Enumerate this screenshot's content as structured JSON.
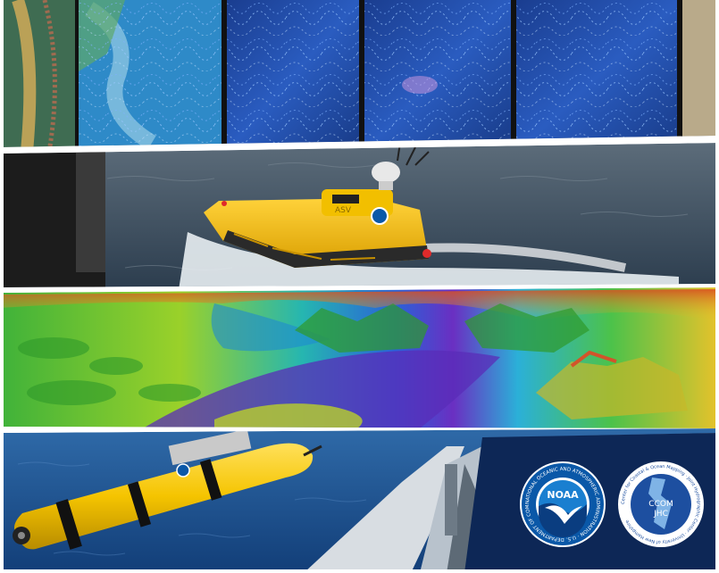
{
  "collage": {
    "panels": [
      {
        "id": "ocean-current-display-wall",
        "subject": "ocean current visualization screens"
      },
      {
        "id": "autonomous-survey-vessel",
        "subject": "yellow autonomous surface vessel",
        "hull_marking": "ASV"
      },
      {
        "id": "seafloor-bathymetry-map",
        "subject": "colored 3D seafloor bathymetry"
      },
      {
        "id": "underwater-glider-deployment",
        "subject": "yellow AUV over water beside a ship"
      }
    ]
  },
  "logos": {
    "noaa": {
      "center_text": "NOAA",
      "ring_text": "NATIONAL OCEANIC AND ATMOSPHERIC ADMINISTRATION · U.S. DEPARTMENT OF COMMERCE",
      "colors": {
        "outer": "#0a58a8",
        "sky": "#1a7fd0",
        "bird": "#ffffff"
      }
    },
    "ccom": {
      "center_text_1": "CCOM",
      "center_text_2": "JHC",
      "ring_text": "Center for Coastal & Ocean Mapping · Joint Hydrographic Center · University of New Hampshire",
      "colors": {
        "ring": "#ffffff",
        "inner": "#1d4fa0",
        "land": "#7fb3e6"
      }
    }
  },
  "colors": {
    "wall_blue": "#1d46a8",
    "boat_yellow": "#f2c200",
    "sea_dark": "#33475b",
    "bathy_low": "#3aa8e8",
    "glider_yellow": "#f5c800",
    "panel_navy": "#0d2756"
  }
}
